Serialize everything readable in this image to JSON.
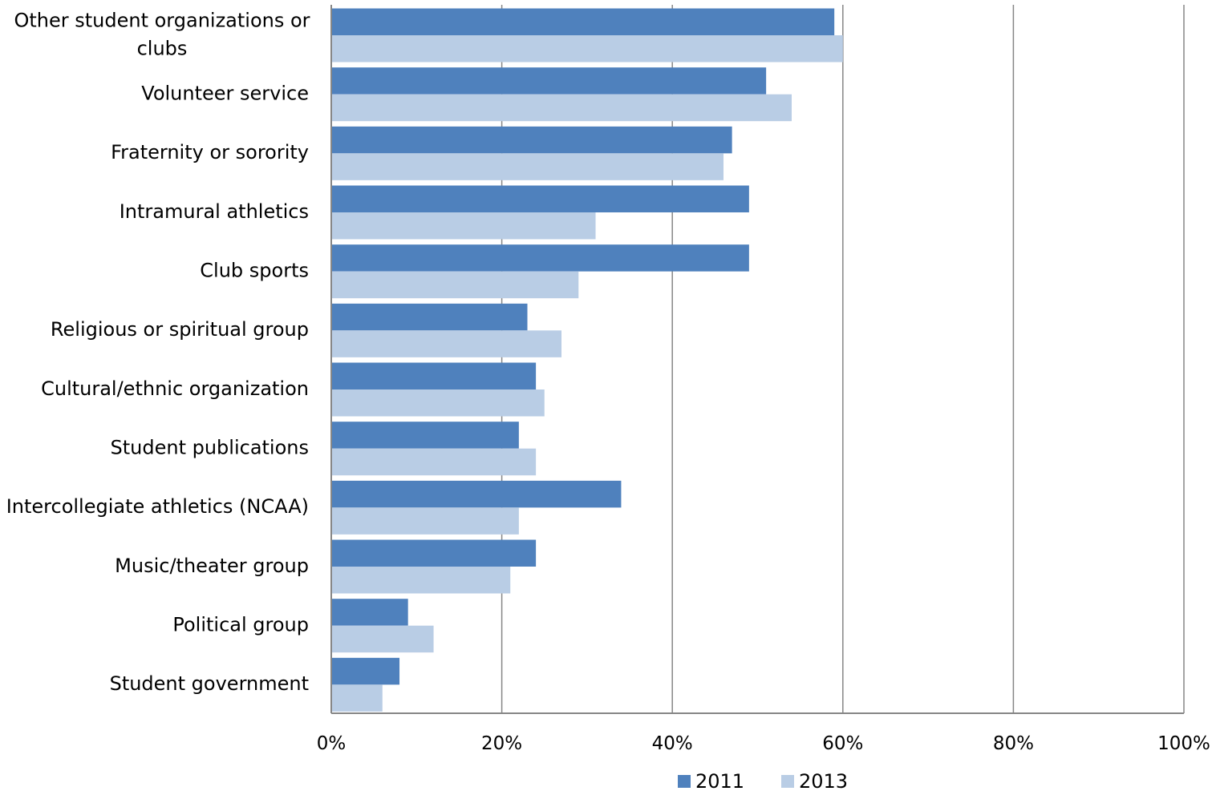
{
  "chart_data": {
    "type": "bar",
    "orientation": "horizontal",
    "categories": [
      [
        "Other student organizations or",
        "clubs"
      ],
      [
        "Volunteer service"
      ],
      [
        "Fraternity or sorority"
      ],
      [
        "Intramural athletics"
      ],
      [
        "Club sports"
      ],
      [
        "Religious or spiritual group"
      ],
      [
        "Cultural/ethnic organization"
      ],
      [
        "Student publications"
      ],
      [
        "Intercollegiate athletics (NCAA)"
      ],
      [
        "Music/theater group"
      ],
      [
        "Political group"
      ],
      [
        "Student government"
      ]
    ],
    "series": [
      {
        "name": "2011",
        "color": "#4f81bd",
        "values": [
          59,
          51,
          47,
          49,
          49,
          23,
          24,
          22,
          34,
          24,
          9,
          8
        ]
      },
      {
        "name": "2013",
        "color": "#b9cde5",
        "values": [
          60,
          54,
          46,
          31,
          29,
          27,
          25,
          24,
          22,
          21,
          12,
          6
        ]
      }
    ],
    "xlim": [
      0,
      100
    ],
    "ticks": [
      0,
      20,
      40,
      60,
      80,
      100
    ],
    "tick_labels": [
      "0%",
      "20%",
      "40%",
      "60%",
      "80%",
      "100%"
    ],
    "grid": true,
    "legend_position": "bottom",
    "gridline_color": "#868686",
    "axis_color": "#868686"
  }
}
